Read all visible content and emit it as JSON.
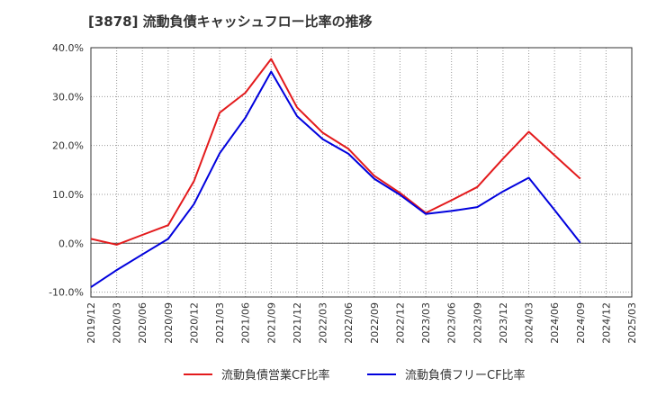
{
  "title": "[3878]  流動負債キャッシュフロー比率の推移",
  "chart_data": {
    "type": "line",
    "y_ticks": [
      -10,
      0,
      10,
      20,
      30,
      40
    ],
    "y_tick_labels": [
      "-10.0%",
      "0.0%",
      "10.0%",
      "20.0%",
      "30.0%",
      "40.0%"
    ],
    "ylim": [
      -11,
      40
    ],
    "grid": true,
    "legend_position": "bottom",
    "categories": [
      "2019/12",
      "2020/03",
      "2020/06",
      "2020/09",
      "2020/12",
      "2021/03",
      "2021/06",
      "2021/09",
      "2021/12",
      "2022/03",
      "2022/06",
      "2022/09",
      "2022/12",
      "2023/03",
      "2023/06",
      "2023/09",
      "2023/12",
      "2024/03",
      "2024/06",
      "2024/09",
      "2024/12",
      "2025/03"
    ],
    "series": [
      {
        "name": "流動負債営業CF比率",
        "color": "#e31a1c",
        "values": [
          0.9,
          -0.3,
          1.7,
          3.7,
          12.7,
          26.7,
          30.8,
          37.7,
          27.8,
          22.6,
          19.3,
          13.8,
          10.3,
          6.2,
          8.8,
          11.5,
          17.3,
          22.8,
          18.0,
          13.2,
          null,
          null
        ]
      },
      {
        "name": "流動負債フリーCF比率",
        "color": "#0000dd",
        "values": [
          -9.0,
          -5.5,
          -2.3,
          0.9,
          8.0,
          18.4,
          25.7,
          35.1,
          26.0,
          21.3,
          18.3,
          13.2,
          9.9,
          6.0,
          6.6,
          7.4,
          10.6,
          13.4,
          6.8,
          0.1,
          null,
          null
        ]
      }
    ]
  }
}
